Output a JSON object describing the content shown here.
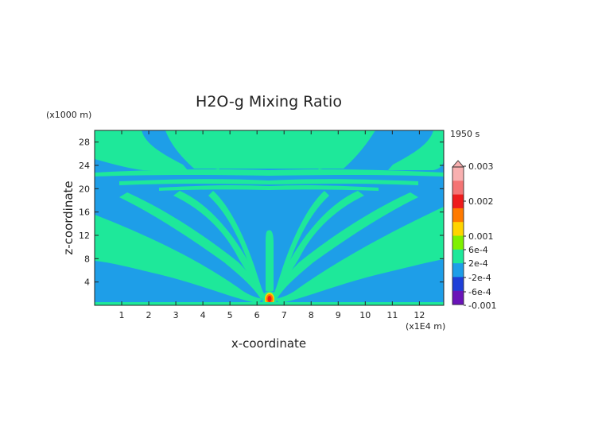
{
  "chart_data": {
    "type": "heatmap",
    "title": "H2O-g Mixing Ratio",
    "xlabel": "x-coordinate",
    "ylabel": "z-coordinate",
    "x_unit": "(x1E4 m)",
    "y_unit": "(x1000 m)",
    "time_label": "1950 s",
    "xlim": [
      0,
      12.9
    ],
    "ylim": [
      0,
      30
    ],
    "x_ticks": [
      "1",
      "2",
      "3",
      "4",
      "5",
      "6",
      "7",
      "8",
      "9",
      "10",
      "11",
      "12"
    ],
    "y_ticks": [
      "4",
      "8",
      "12",
      "16",
      "20",
      "24",
      "28"
    ],
    "colorbar": {
      "labels": [
        "0.003",
        "0.002",
        "0.001",
        "6e-4",
        "2e-4",
        "-2e-4",
        "-6e-4",
        "-0.001"
      ],
      "colors": [
        "#f9b0b0",
        "#f47474",
        "#ee1c1c",
        "#ff7a00",
        "#ffd400",
        "#7ff000",
        "#1ee89a",
        "#1e9ee8",
        "#1f3fd8",
        "#6a14b8"
      ]
    },
    "background_value": "-2e-4 to 2e-4",
    "plume_value": "2e-4 to 6e-4",
    "source": {
      "x": 6.4,
      "z": 0.5,
      "max": "0.001 to 0.003"
    }
  }
}
